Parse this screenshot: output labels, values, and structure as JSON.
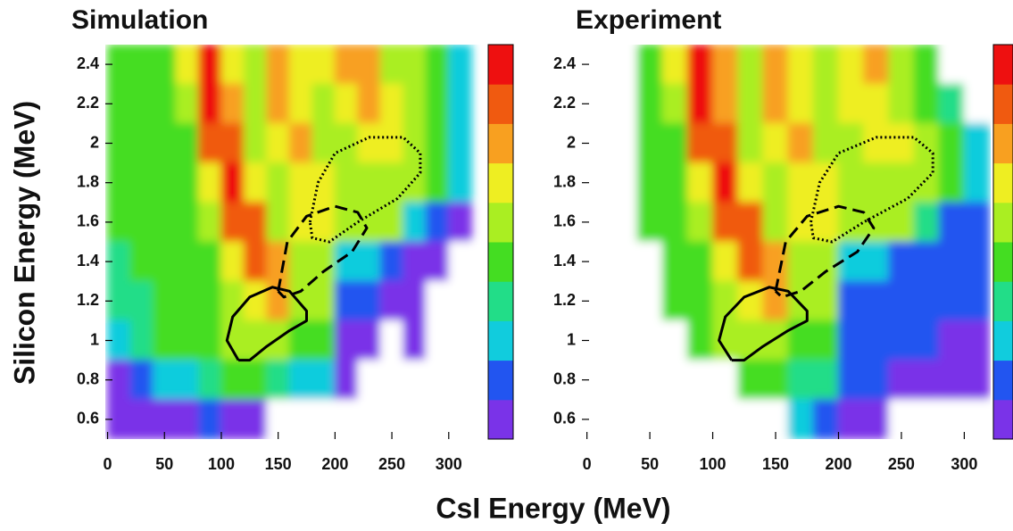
{
  "figure": {
    "xlabel": "CsI Energy (MeV)",
    "ylabel": "Silicon Energy (MeV)",
    "colormap": [
      "#ffffff",
      "#7a33e8",
      "#2255f0",
      "#11ccdd",
      "#22dd88",
      "#44dd22",
      "#aaee22",
      "#eeee22",
      "#f8a020",
      "#f05a10",
      "#ee1010"
    ]
  },
  "chart_data": [
    {
      "type": "heatmap",
      "title": "Simulation",
      "xlim": [
        -2,
        330
      ],
      "ylim": [
        0.5,
        2.5
      ],
      "xticks": [
        0,
        50,
        100,
        150,
        200,
        250,
        300
      ],
      "yticks": [
        0.6,
        0.8,
        1,
        1.2,
        1.4,
        1.6,
        1.8,
        2,
        2.2,
        2.4
      ],
      "x_edges": [
        0,
        20,
        40,
        60,
        80,
        100,
        120,
        140,
        160,
        180,
        200,
        220,
        240,
        260,
        280,
        300,
        320
      ],
      "y_edges": [
        2.5,
        2.3,
        2.1,
        1.9,
        1.7,
        1.5,
        1.3,
        1.1,
        0.9,
        0.7,
        0.5
      ],
      "z": [
        [
          5,
          5,
          5,
          7,
          10,
          7,
          6,
          8,
          7,
          7,
          8,
          8,
          6,
          6,
          5,
          3
        ],
        [
          5,
          5,
          5,
          6,
          10,
          8,
          6,
          8,
          7,
          6,
          7,
          8,
          7,
          6,
          5,
          3
        ],
        [
          5,
          5,
          5,
          5,
          9,
          9,
          6,
          7,
          8,
          6,
          6,
          7,
          7,
          6,
          5,
          3
        ],
        [
          5,
          5,
          5,
          5,
          7,
          10,
          7,
          6,
          7,
          7,
          6,
          6,
          6,
          6,
          5,
          3
        ],
        [
          5,
          5,
          5,
          5,
          6,
          9,
          9,
          6,
          7,
          7,
          6,
          6,
          6,
          3,
          2,
          1
        ],
        [
          4,
          5,
          5,
          5,
          5,
          7,
          9,
          8,
          6,
          6,
          3,
          3,
          2,
          1,
          1,
          0
        ],
        [
          4,
          4,
          5,
          5,
          5,
          6,
          7,
          8,
          6,
          6,
          2,
          2,
          1,
          1,
          0,
          0
        ],
        [
          3,
          4,
          5,
          5,
          5,
          6,
          6,
          6,
          5,
          5,
          1,
          1,
          0,
          1,
          0,
          0
        ],
        [
          1,
          2,
          3,
          3,
          4,
          5,
          5,
          4,
          3,
          3,
          1,
          0,
          0,
          0,
          0,
          0
        ],
        [
          1,
          1,
          1,
          1,
          2,
          1,
          1,
          0,
          0,
          0,
          0,
          0,
          0,
          0,
          0,
          0
        ]
      ],
      "contours": [
        {
          "style": "solid",
          "x": [
            115,
            105,
            110,
            125,
            145,
            160,
            175,
            175,
            160,
            140,
            125,
            115
          ],
          "y": [
            0.9,
            1.0,
            1.12,
            1.22,
            1.27,
            1.25,
            1.15,
            1.1,
            1.05,
            0.97,
            0.9,
            0.9
          ]
        },
        {
          "style": "dashed",
          "x": [
            150,
            158,
            175,
            200,
            220,
            228,
            215,
            190,
            170,
            155,
            150
          ],
          "y": [
            1.25,
            1.5,
            1.63,
            1.68,
            1.65,
            1.57,
            1.45,
            1.35,
            1.25,
            1.22,
            1.25
          ]
        },
        {
          "style": "dotted",
          "x": [
            178,
            185,
            200,
            230,
            260,
            275,
            275,
            255,
            220,
            195,
            180,
            178
          ],
          "y": [
            1.6,
            1.8,
            1.95,
            2.03,
            2.03,
            1.95,
            1.85,
            1.72,
            1.6,
            1.5,
            1.52,
            1.6
          ]
        }
      ]
    },
    {
      "type": "heatmap",
      "title": "Experiment",
      "xlim": [
        -4,
        321
      ],
      "ylim": [
        0.5,
        2.5
      ],
      "xticks": [
        0,
        50,
        100,
        150,
        200,
        250,
        300
      ],
      "yticks": [
        0.6,
        0.8,
        1,
        1.2,
        1.4,
        1.6,
        1.8,
        2,
        2.2,
        2.4
      ],
      "x_edges": [
        0,
        20,
        40,
        60,
        80,
        100,
        120,
        140,
        160,
        180,
        200,
        220,
        240,
        260,
        280,
        300,
        320
      ],
      "y_edges": [
        2.5,
        2.3,
        2.1,
        1.9,
        1.7,
        1.5,
        1.3,
        1.1,
        0.9,
        0.7,
        0.5
      ],
      "z": [
        [
          0,
          0,
          5,
          7,
          10,
          8,
          6,
          8,
          7,
          6,
          7,
          8,
          6,
          5,
          0,
          0
        ],
        [
          0,
          0,
          5,
          6,
          10,
          8,
          6,
          8,
          7,
          6,
          7,
          7,
          6,
          5,
          4,
          0
        ],
        [
          0,
          0,
          5,
          5,
          9,
          9,
          6,
          7,
          8,
          6,
          6,
          7,
          7,
          6,
          5,
          3
        ],
        [
          0,
          0,
          5,
          5,
          7,
          10,
          7,
          6,
          7,
          7,
          6,
          6,
          6,
          6,
          5,
          3
        ],
        [
          0,
          0,
          5,
          5,
          6,
          9,
          9,
          6,
          7,
          7,
          6,
          6,
          6,
          4,
          2,
          2
        ],
        [
          0,
          0,
          0,
          5,
          5,
          7,
          9,
          8,
          6,
          6,
          3,
          3,
          2,
          2,
          2,
          2
        ],
        [
          0,
          0,
          0,
          5,
          5,
          6,
          7,
          8,
          6,
          6,
          2,
          2,
          2,
          2,
          2,
          2
        ],
        [
          0,
          0,
          0,
          0,
          5,
          6,
          6,
          6,
          5,
          5,
          2,
          2,
          2,
          2,
          1,
          1
        ],
        [
          0,
          0,
          0,
          0,
          0,
          0,
          5,
          5,
          4,
          4,
          2,
          2,
          1,
          1,
          1,
          1
        ],
        [
          0,
          0,
          0,
          0,
          0,
          0,
          0,
          0,
          3,
          2,
          1,
          1,
          0,
          0,
          0,
          0
        ]
      ],
      "contours": [
        {
          "style": "solid",
          "x": [
            115,
            105,
            110,
            125,
            145,
            160,
            175,
            175,
            160,
            140,
            125,
            115
          ],
          "y": [
            0.9,
            1.0,
            1.12,
            1.22,
            1.27,
            1.25,
            1.15,
            1.1,
            1.05,
            0.97,
            0.9,
            0.9
          ]
        },
        {
          "style": "dashed",
          "x": [
            150,
            158,
            175,
            200,
            220,
            228,
            215,
            190,
            170,
            155,
            150
          ],
          "y": [
            1.25,
            1.5,
            1.63,
            1.68,
            1.65,
            1.57,
            1.45,
            1.35,
            1.25,
            1.22,
            1.25
          ]
        },
        {
          "style": "dotted",
          "x": [
            178,
            185,
            200,
            230,
            260,
            275,
            275,
            255,
            220,
            195,
            180,
            178
          ],
          "y": [
            1.6,
            1.8,
            1.95,
            2.03,
            2.03,
            1.95,
            1.85,
            1.72,
            1.6,
            1.5,
            1.52,
            1.6
          ]
        }
      ]
    }
  ]
}
